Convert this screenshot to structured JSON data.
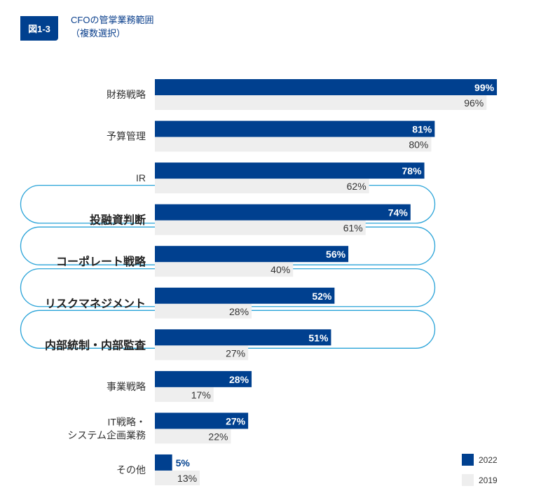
{
  "header": {
    "badge": "図1-3",
    "title_line1": "CFOの管掌業務範囲",
    "title_line2": "（複数選択）"
  },
  "colors": {
    "series_2022": "#00408f",
    "series_2019": "#eeeeee",
    "highlight_outline": "#29a3d8"
  },
  "chart_data": {
    "type": "bar",
    "orientation": "horizontal",
    "title": "CFOの管掌業務範囲（複数選択）",
    "xlabel": "",
    "ylabel": "",
    "xlim": [
      0,
      100
    ],
    "unit": "%",
    "categories": [
      "財務戦略",
      "予算管理",
      "IR",
      "投融資判断",
      "コーポレート戦略",
      "リスクマネジメント",
      "内部統制・内部監査",
      "事業戦略",
      "IT戦略・\nシステム企画業務",
      "その他"
    ],
    "highlighted": [
      false,
      false,
      false,
      true,
      true,
      true,
      true,
      false,
      false,
      false
    ],
    "series": [
      {
        "name": "2022",
        "values": [
          99,
          81,
          78,
          74,
          56,
          52,
          51,
          28,
          27,
          5
        ]
      },
      {
        "name": "2019",
        "values": [
          96,
          80,
          62,
          61,
          40,
          28,
          27,
          17,
          22,
          13
        ]
      }
    ],
    "legend": {
      "position": "bottom-right",
      "entries": [
        "2022",
        "2019"
      ]
    }
  }
}
